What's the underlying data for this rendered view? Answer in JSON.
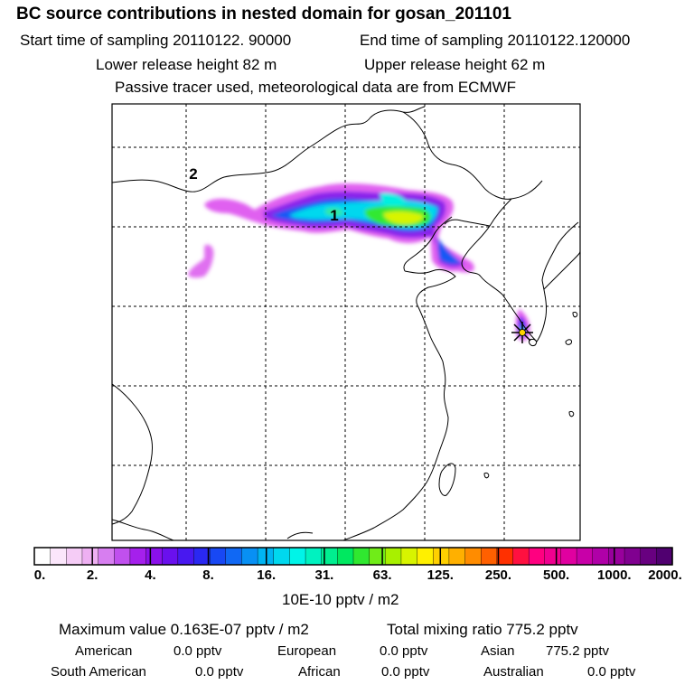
{
  "header": {
    "title": "BC  source contributions in nested domain for gosan_201101",
    "start_time": "Start time of sampling 20110122. 90000",
    "end_time": "End time of sampling 20110122.120000",
    "lower_release": "Lower release height   82 m",
    "upper_release": "Upper release height   62 m",
    "tracer_note": "Passive tracer used, meteorological data are from ECMWF"
  },
  "map": {
    "region_labels": [
      "1",
      "2"
    ],
    "receptor_marker": "receptor-star-icon",
    "colors": {
      "coastline": "#000000",
      "grid": "#000000",
      "receptor": "#ffd400"
    }
  },
  "colorbar": {
    "tick_labels": [
      "0.",
      "2.",
      "4.",
      "8.",
      "16.",
      "31.",
      "63.",
      "125.",
      "250.",
      "500.",
      "1000.",
      "2000."
    ],
    "unit_label": "10E-10 pptv / m2",
    "colors": [
      "#ffffff",
      "#fbe6fb",
      "#f5ccf6",
      "#eeb0f2",
      "#d77ef0",
      "#c050ee",
      "#a520ec",
      "#8a10ea",
      "#6a10ee",
      "#4818f0",
      "#2a28f2",
      "#1848f4",
      "#1068f4",
      "#0890f4",
      "#00b4f2",
      "#00d8ee",
      "#00f4e8",
      "#00f2c0",
      "#00ee90",
      "#00e860",
      "#30e830",
      "#70ec18",
      "#a8f000",
      "#d8f400",
      "#fff000",
      "#ffd000",
      "#ffb000",
      "#ff8c00",
      "#ff6000",
      "#ff3000",
      "#ff1040",
      "#ff0080",
      "#f00090",
      "#e000a0",
      "#c800a8",
      "#b000a8",
      "#98009c",
      "#800090",
      "#680080",
      "#500070"
    ]
  },
  "footer": {
    "max_value": "Maximum value  0.163E-07 pptv / m2",
    "total_mixing": "Total mixing ratio      775.2 pptv",
    "american": "American",
    "american_value": "0.0 pptv",
    "european": "European",
    "european_value": "0.0 pptv",
    "asian": "Asian",
    "asian_value": "775.2 pptv",
    "south_american": "South American",
    "south_american_value": "0.0 pptv",
    "african": "African",
    "african_value": "0.0 pptv",
    "australian": "Australian",
    "australian_value": "0.0 pptv"
  }
}
